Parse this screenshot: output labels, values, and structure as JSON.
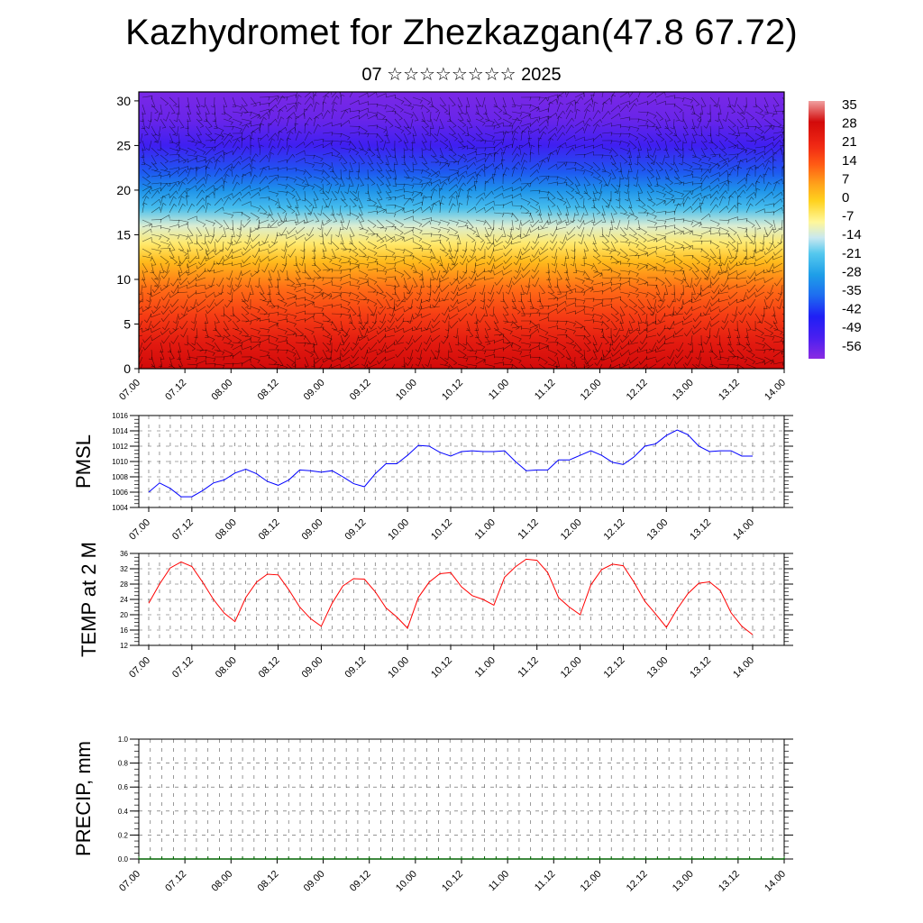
{
  "title": "Kazhydromet for Zhezkazgan(47.8 67.72)",
  "subtitle": "07 ☆☆☆☆☆☆☆☆ 2025",
  "chart_data": [
    {
      "type": "heatmap",
      "name": "temperature-wind-cross-section",
      "y_ticks": [
        0,
        5,
        10,
        15,
        20,
        25,
        30
      ],
      "ylim": [
        0,
        31
      ],
      "x_ticks": [
        "07.00",
        "07.12",
        "08.00",
        "08.12",
        "09.00",
        "09.12",
        "10.00",
        "10.12",
        "11.00",
        "11.12",
        "12.00",
        "12.12",
        "13.00",
        "13.12",
        "14.00"
      ],
      "colorbar_labels": [
        "35",
        "28",
        "21",
        "14",
        "7",
        "0",
        "-7",
        "-14",
        "-21",
        "-28",
        "-35",
        "-42",
        "-49",
        "-56"
      ],
      "colorbar_range": [
        -60,
        38
      ],
      "temperature_by_level": [
        {
          "level": 0,
          "value": 30
        },
        {
          "level": 3,
          "value": 25
        },
        {
          "level": 6,
          "value": 18
        },
        {
          "level": 9,
          "value": 12
        },
        {
          "level": 12,
          "value": 3
        },
        {
          "level": 14,
          "value": -5
        },
        {
          "level": 16,
          "value": -12
        },
        {
          "level": 18,
          "value": -22
        },
        {
          "level": 20,
          "value": -30
        },
        {
          "level": 22,
          "value": -38
        },
        {
          "level": 25,
          "value": -50
        },
        {
          "level": 28,
          "value": -56
        },
        {
          "level": 31,
          "value": -58
        }
      ]
    },
    {
      "type": "line",
      "name": "pmsl",
      "ylabel": "PMSL",
      "y_ticks": [
        1004,
        1006,
        1008,
        1010,
        1012,
        1014,
        1016
      ],
      "ylim": [
        1004,
        1016
      ],
      "x_ticks": [
        "07.00",
        "07.12",
        "08.00",
        "08.12",
        "09.00",
        "09.12",
        "10.00",
        "10.12",
        "11.00",
        "11.12",
        "12.00",
        "12.12",
        "13.00",
        "13.12",
        "14.00"
      ],
      "x_hours": [
        0,
        3,
        6,
        9,
        12,
        15,
        18,
        21,
        24,
        27,
        30,
        33,
        36,
        39,
        42,
        45,
        48,
        51,
        54,
        57,
        60,
        63,
        66,
        69,
        72,
        75,
        78,
        81,
        84,
        87,
        90,
        93,
        96,
        99,
        102,
        105,
        108,
        111,
        114,
        117,
        120,
        123,
        126,
        129,
        132,
        135,
        138,
        141,
        144,
        147,
        150,
        153,
        156,
        159,
        162,
        165,
        168
      ],
      "values": [
        1006.0,
        1007.2,
        1006.5,
        1005.4,
        1005.4,
        1006.2,
        1007.2,
        1007.6,
        1008.5,
        1009.0,
        1008.4,
        1007.4,
        1006.9,
        1007.6,
        1008.9,
        1008.8,
        1008.6,
        1008.8,
        1008.0,
        1007.1,
        1006.7,
        1008.4,
        1009.7,
        1009.7,
        1010.8,
        1012.1,
        1012.0,
        1011.2,
        1010.7,
        1011.3,
        1011.4,
        1011.3,
        1011.3,
        1011.4,
        1010.0,
        1008.8,
        1008.9,
        1008.9,
        1010.2,
        1010.2,
        1010.8,
        1011.4,
        1010.8,
        1009.9,
        1009.6,
        1010.6,
        1012.0,
        1012.3,
        1013.4,
        1014.1,
        1013.5,
        1012.0,
        1011.3,
        1011.4,
        1011.4,
        1010.7,
        1010.7
      ],
      "color": "#0000ff"
    },
    {
      "type": "line",
      "name": "temp2m",
      "ylabel": "TEMP at 2 M",
      "y_ticks": [
        12,
        16,
        20,
        24,
        28,
        32,
        36
      ],
      "ylim": [
        12,
        36
      ],
      "x_ticks": [
        "07.00",
        "07.12",
        "08.00",
        "08.12",
        "09.00",
        "09.12",
        "10.00",
        "10.12",
        "11.00",
        "11.12",
        "12.00",
        "12.12",
        "13.00",
        "13.12",
        "14.00"
      ],
      "x_hours": [
        0,
        3,
        6,
        9,
        12,
        15,
        18,
        21,
        24,
        27,
        30,
        33,
        36,
        39,
        42,
        45,
        48,
        51,
        54,
        57,
        60,
        63,
        66,
        69,
        72,
        75,
        78,
        81,
        84,
        87,
        90,
        93,
        96,
        99,
        102,
        105,
        108,
        111,
        114,
        117,
        120,
        123,
        126,
        129,
        132,
        135,
        138,
        141,
        144,
        147,
        150,
        153,
        156,
        159,
        162,
        165,
        168
      ],
      "values": [
        23.0,
        28.0,
        32.2,
        33.8,
        32.6,
        28.5,
        24.0,
        20.4,
        18.2,
        24.5,
        28.5,
        30.6,
        30.4,
        26.5,
        22.0,
        19.0,
        17.0,
        23.0,
        27.5,
        29.4,
        29.3,
        26.0,
        21.8,
        19.4,
        16.5,
        24.5,
        28.5,
        30.7,
        31.0,
        27.3,
        25.0,
        24.0,
        22.5,
        29.8,
        32.5,
        34.5,
        34.2,
        31.0,
        24.5,
        22.0,
        20.0,
        27.8,
        31.8,
        33.2,
        32.8,
        28.5,
        23.5,
        20.2,
        16.7,
        21.5,
        25.5,
        28.2,
        28.6,
        26.3,
        20.5,
        17.0,
        14.8
      ],
      "color": "#ff0000"
    },
    {
      "type": "bar",
      "name": "precip",
      "ylabel": "PRECIP, mm",
      "y_ticks": [
        "0.0",
        "0.2",
        "0.4",
        "0.6",
        "0.8",
        "1.0"
      ],
      "ylim": [
        0,
        1
      ],
      "x_ticks": [
        "07.00",
        "07.12",
        "08.00",
        "08.12",
        "09.00",
        "09.12",
        "10.00",
        "10.12",
        "11.00",
        "11.12",
        "12.00",
        "12.12",
        "13.00",
        "13.12",
        "14.00"
      ],
      "values_all": 0,
      "color": "#006400"
    }
  ]
}
